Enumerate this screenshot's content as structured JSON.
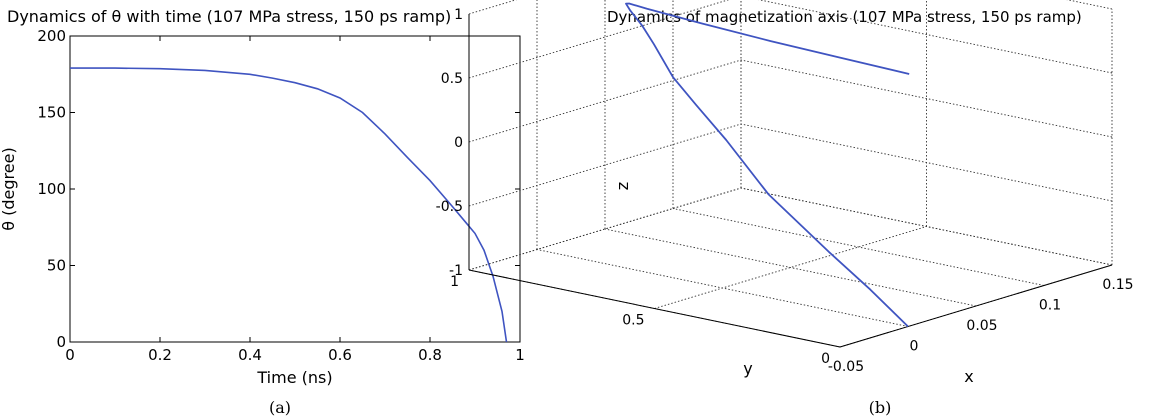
{
  "chart_data": [
    {
      "type": "line",
      "title": "Dynamics of θ with time (107 MPa stress, 150 ps ramp)",
      "xlabel": "Time (ns)",
      "ylabel": "θ (degree)",
      "xlim": [
        0,
        1
      ],
      "ylim": [
        0,
        200
      ],
      "xticks": [
        "0",
        "0.2",
        "0.4",
        "0.6",
        "0.8",
        "1"
      ],
      "yticks": [
        "0",
        "50",
        "100",
        "150",
        "200"
      ],
      "grid": false,
      "series": [
        {
          "color": "#3f54c1",
          "x": [
            0,
            0.1,
            0.2,
            0.3,
            0.4,
            0.45,
            0.5,
            0.55,
            0.6,
            0.65,
            0.7,
            0.75,
            0.8,
            0.85,
            0.88,
            0.9,
            0.92,
            0.94,
            0.96,
            0.97
          ],
          "y": [
            179,
            179,
            178.6,
            177.5,
            175,
            172.5,
            169.5,
            165.5,
            159.5,
            150,
            136,
            120.5,
            105.5,
            88.5,
            78,
            71,
            60,
            43,
            20,
            0
          ]
        }
      ],
      "caption": "(a)"
    },
    {
      "type": "line3d",
      "title": "Dynamics of magnetization axis (107 MPa stress, 150 ps ramp)",
      "xlabel": "x",
      "ylabel": "y",
      "zlabel": "z",
      "xlim": [
        -0.05,
        0.15
      ],
      "ylim": [
        0,
        1
      ],
      "zlim": [
        -1,
        1
      ],
      "xticks": [
        "-0.05",
        "0",
        "0.05",
        "0.1",
        "0.15"
      ],
      "yticks": [
        "0",
        "0.5",
        "1"
      ],
      "zticks": [
        "-1",
        "-0.5",
        "0",
        "0.5",
        "1"
      ],
      "grid": true,
      "series": [
        {
          "color": "#3f54c1",
          "x": [
            0.0,
            0.005,
            0.01,
            0.02,
            0.03,
            0.035,
            0.04,
            0.045,
            0.05,
            0.055,
            0.06,
            0.065,
            0.07,
            0.08,
            0.09,
            0.1,
            0.11
          ],
          "y": [
            0.0,
            0.12,
            0.25,
            0.45,
            0.6,
            0.7,
            0.78,
            0.85,
            0.9,
            0.95,
            0.98,
            0.99,
            0.96,
            0.85,
            0.7,
            0.55,
            0.4
          ],
          "z": [
            -1.0,
            -0.8,
            -0.6,
            -0.3,
            0.0,
            0.2,
            0.35,
            0.55,
            0.65,
            0.72,
            0.74,
            0.72,
            0.68,
            0.6,
            0.52,
            0.45,
            0.38
          ]
        }
      ],
      "caption": "(b)"
    }
  ]
}
